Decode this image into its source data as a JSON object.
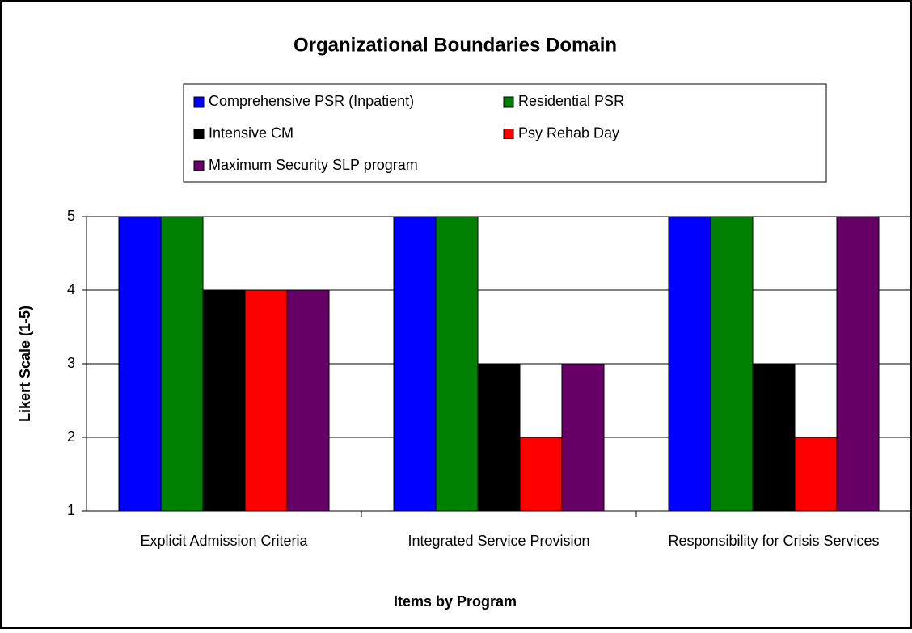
{
  "chart_data": {
    "type": "bar",
    "title": "Organizational Boundaries Domain",
    "xlabel": "Items by Program",
    "ylabel": "Likert Scale (1-5)",
    "categories": [
      "Explicit Admission Criteria",
      "Integrated Service Provision",
      "Responsibility for Crisis Services"
    ],
    "series": [
      {
        "name": "Comprehensive PSR (Inpatient)",
        "color": "#0000ff",
        "values": [
          5,
          5,
          5
        ]
      },
      {
        "name": "Residential PSR",
        "color": "#008000",
        "values": [
          5,
          5,
          5
        ]
      },
      {
        "name": "Intensive CM",
        "color": "#000000",
        "values": [
          4,
          3,
          3
        ]
      },
      {
        "name": "Psy Rehab Day",
        "color": "#ff0000",
        "values": [
          4,
          2,
          2
        ]
      },
      {
        "name": "Maximum Security SLP program",
        "color": "#660066",
        "values": [
          4,
          3,
          5
        ]
      }
    ],
    "ylim": [
      1,
      5
    ],
    "yticks": [
      1,
      2,
      3,
      4,
      5
    ],
    "grid": true
  }
}
